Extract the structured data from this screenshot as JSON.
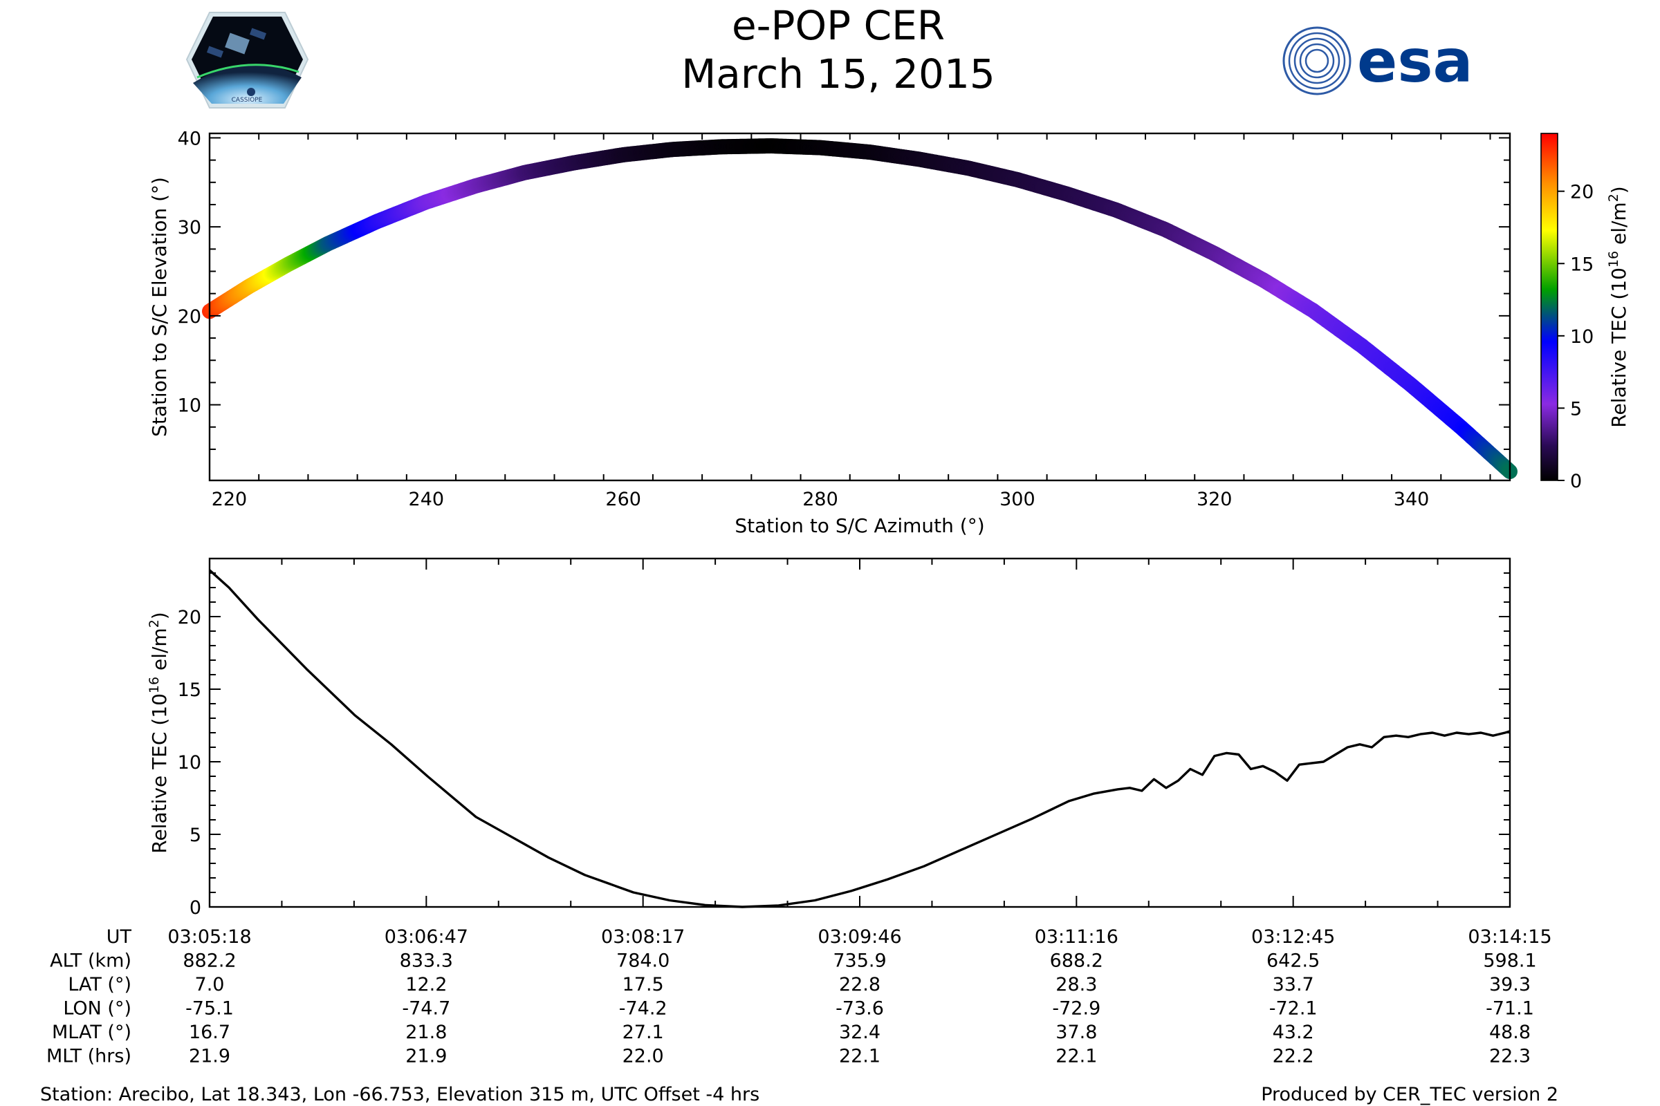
{
  "header": {
    "title_line1": "e-POP CER",
    "title_line2": "March 15, 2015",
    "logo_left_text": "CASSIOPE",
    "logo_right_text": "esa"
  },
  "colors": {
    "line": "#000000",
    "colormap": [
      "#000000",
      "#2a0a55",
      "#8a2be2",
      "#0000ff",
      "#00aa00",
      "#ffff00",
      "#ff8c00",
      "#ff0000"
    ]
  },
  "chart_data": [
    {
      "type": "scatter",
      "title": "",
      "xlabel": "Station to S/C Azimuth (°)",
      "ylabel": "Station to S/C Elevation (°)",
      "xlim": [
        218,
        350
      ],
      "ylim": [
        1.5,
        40.5
      ],
      "xticks": [
        220,
        240,
        260,
        280,
        300,
        320,
        340
      ],
      "yticks": [
        10,
        20,
        30,
        40
      ],
      "color_by": "Relative TEC",
      "colorbar": {
        "label_main": "Relative TEC (10",
        "label_sup": "16",
        "label_tail": " el/m",
        "label_sup2": "2",
        "label_end": ")",
        "range": [
          0,
          24
        ],
        "ticks": [
          0,
          5,
          10,
          15,
          20
        ]
      },
      "points": [
        {
          "az": 218.0,
          "el": 20.5,
          "tec": 23.0
        },
        {
          "az": 222.0,
          "el": 23.3,
          "tec": 19.5
        },
        {
          "az": 226.0,
          "el": 25.8,
          "tec": 15.5
        },
        {
          "az": 230.0,
          "el": 28.1,
          "tec": 11.5
        },
        {
          "az": 235.0,
          "el": 30.6,
          "tec": 8.5
        },
        {
          "az": 240.0,
          "el": 32.8,
          "tec": 6.0
        },
        {
          "az": 245.0,
          "el": 34.6,
          "tec": 4.5
        },
        {
          "az": 250.0,
          "el": 36.1,
          "tec": 3.0
        },
        {
          "az": 255.0,
          "el": 37.2,
          "tec": 2.0
        },
        {
          "az": 260.0,
          "el": 38.1,
          "tec": 1.0
        },
        {
          "az": 265.0,
          "el": 38.7,
          "tec": 0.5
        },
        {
          "az": 270.0,
          "el": 39.0,
          "tec": 0.2
        },
        {
          "az": 275.0,
          "el": 39.1,
          "tec": 0.0
        },
        {
          "az": 280.0,
          "el": 38.9,
          "tec": 0.2
        },
        {
          "az": 285.0,
          "el": 38.4,
          "tec": 0.4
        },
        {
          "az": 290.0,
          "el": 37.6,
          "tec": 0.8
        },
        {
          "az": 295.0,
          "el": 36.6,
          "tec": 1.2
        },
        {
          "az": 300.0,
          "el": 35.3,
          "tec": 1.6
        },
        {
          "az": 305.0,
          "el": 33.7,
          "tec": 2.0
        },
        {
          "az": 310.0,
          "el": 31.9,
          "tec": 2.5
        },
        {
          "az": 315.0,
          "el": 29.7,
          "tec": 3.0
        },
        {
          "az": 320.0,
          "el": 27.0,
          "tec": 3.8
        },
        {
          "az": 325.0,
          "el": 24.0,
          "tec": 4.8
        },
        {
          "az": 330.0,
          "el": 20.6,
          "tec": 6.2
        },
        {
          "az": 335.0,
          "el": 16.6,
          "tec": 7.2
        },
        {
          "az": 340.0,
          "el": 12.2,
          "tec": 8.0
        },
        {
          "az": 345.0,
          "el": 7.5,
          "tec": 9.3
        },
        {
          "az": 350.0,
          "el": 2.5,
          "tec": 12.0
        }
      ]
    },
    {
      "type": "line",
      "title": "",
      "xlabel": "UT",
      "ylabel": "Relative TEC (10",
      "ylabel_sup": "16",
      "ylabel_tail": " el/m",
      "ylabel_sup2": "2",
      "ylabel_end": ")",
      "x_unit": "seconds after 03:05:18",
      "xlim": [
        0,
        537
      ],
      "ylim": [
        0,
        24
      ],
      "yticks": [
        0,
        5,
        10,
        15,
        20
      ],
      "x": [
        0,
        8,
        20,
        40,
        60,
        75,
        90,
        100,
        110,
        125,
        140,
        155,
        165,
        175,
        190,
        205,
        220,
        235,
        250,
        265,
        280,
        295,
        310,
        325,
        340,
        355,
        365,
        375,
        380,
        385,
        390,
        395,
        400,
        405,
        410,
        415,
        420,
        425,
        430,
        435,
        440,
        445,
        450,
        455,
        460,
        465,
        470,
        475,
        480,
        485,
        490,
        495,
        500,
        505,
        510,
        515,
        520,
        525,
        530,
        535,
        537
      ],
      "values": [
        23.2,
        22.0,
        19.8,
        16.4,
        13.2,
        11.2,
        9.0,
        7.6,
        6.2,
        4.8,
        3.4,
        2.2,
        1.6,
        1.0,
        0.45,
        0.12,
        0.0,
        0.1,
        0.45,
        1.1,
        1.9,
        2.8,
        3.9,
        5.0,
        6.1,
        7.3,
        7.8,
        8.1,
        8.2,
        8.0,
        8.8,
        8.2,
        8.7,
        9.5,
        9.1,
        10.4,
        10.6,
        10.5,
        9.5,
        9.7,
        9.3,
        8.7,
        9.8,
        9.9,
        10.0,
        10.5,
        11.0,
        11.2,
        11.0,
        11.7,
        11.8,
        11.7,
        11.9,
        12.0,
        11.8,
        12.0,
        11.9,
        12.0,
        11.8,
        12.0,
        12.1
      ]
    }
  ],
  "table": {
    "row_labels": [
      "UT",
      "ALT (km)",
      "LAT (°)",
      "LON (°)",
      "MLAT (°)",
      "MLT (hrs)"
    ],
    "columns": [
      [
        "03:05:18",
        "882.2",
        "7.0",
        "-75.1",
        "16.7",
        "21.9"
      ],
      [
        "03:06:47",
        "833.3",
        "12.2",
        "-74.7",
        "21.8",
        "21.9"
      ],
      [
        "03:08:17",
        "784.0",
        "17.5",
        "-74.2",
        "27.1",
        "22.0"
      ],
      [
        "03:09:46",
        "735.9",
        "22.8",
        "-73.6",
        "32.4",
        "22.1"
      ],
      [
        "03:11:16",
        "688.2",
        "28.3",
        "-72.9",
        "37.8",
        "22.1"
      ],
      [
        "03:12:45",
        "642.5",
        "33.7",
        "-72.1",
        "43.2",
        "22.2"
      ],
      [
        "03:14:15",
        "598.1",
        "39.3",
        "-71.1",
        "48.8",
        "22.3"
      ]
    ]
  },
  "footer": {
    "station": "Station: Arecibo, Lat 18.343, Lon -66.753, Elevation 315 m, UTC Offset -4 hrs",
    "produced_by": "Produced by CER_TEC version 2"
  }
}
